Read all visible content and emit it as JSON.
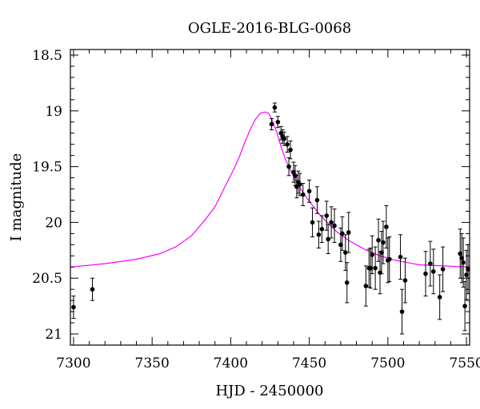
{
  "chart_data": {
    "type": "scatter",
    "title": "OGLE-2016-BLG-0068",
    "xlabel": "HJD - 2450000",
    "ylabel": "I magnitude",
    "xlim": [
      7298,
      7552
    ],
    "ylim": [
      21.1,
      18.45
    ],
    "y_inverted": true,
    "x_ticks": [
      7300,
      7350,
      7400,
      7450,
      7500,
      7550
    ],
    "y_ticks": [
      18.5,
      19,
      19.5,
      20,
      20.5,
      21
    ],
    "x_tick_labels": [
      "7300",
      "7350",
      "7400",
      "7450",
      "7500",
      "7550"
    ],
    "y_tick_labels": [
      "18.5",
      "19",
      "19.5",
      "20",
      "20.5",
      "21"
    ],
    "grid": false,
    "legend": "none",
    "colors": {
      "data": "#000000",
      "model": "#ff00ff"
    },
    "model": {
      "name": "",
      "x": [
        7298,
        7320,
        7340,
        7355,
        7365,
        7375,
        7383,
        7390,
        7396,
        7401,
        7405,
        7409,
        7413,
        7416,
        7419,
        7422,
        7424,
        7426,
        7429,
        7432,
        7435,
        7440,
        7445,
        7450,
        7456,
        7462,
        7468,
        7475,
        7485,
        7495,
        7505,
        7520,
        7535,
        7552
      ],
      "y": [
        20.4,
        20.37,
        20.33,
        20.28,
        20.22,
        20.12,
        19.99,
        19.86,
        19.69,
        19.55,
        19.43,
        19.28,
        19.15,
        19.07,
        19.02,
        19.01,
        19.02,
        19.07,
        19.18,
        19.32,
        19.44,
        19.59,
        19.71,
        19.81,
        19.92,
        20.01,
        20.09,
        20.16,
        20.24,
        20.3,
        20.34,
        20.38,
        20.39,
        20.4
      ]
    },
    "series": [
      {
        "name": "",
        "x": [
          7300,
          7312,
          7426,
          7428,
          7430,
          7432,
          7433,
          7434,
          7436,
          7437,
          7438,
          7440,
          7441,
          7442,
          7443,
          7444,
          7446,
          7450,
          7452,
          7455,
          7456,
          7458,
          7461,
          7462,
          7464,
          7466,
          7470,
          7471,
          7473,
          7474,
          7475,
          7486,
          7488,
          7489,
          7490,
          7492,
          7494,
          7495,
          7496,
          7497,
          7499,
          7500,
          7501,
          7508,
          7509,
          7511,
          7524,
          7527,
          7529,
          7533,
          7535,
          7546,
          7547,
          7548,
          7549,
          7550,
          7551
        ],
        "y": [
          20.76,
          20.6,
          19.12,
          18.97,
          19.1,
          19.2,
          19.23,
          19.25,
          19.3,
          19.5,
          19.35,
          19.55,
          19.58,
          19.68,
          19.64,
          19.66,
          19.75,
          19.72,
          20.0,
          19.8,
          20.11,
          20.06,
          19.94,
          20.15,
          20.0,
          20.03,
          20.2,
          20.1,
          20.27,
          20.54,
          20.09,
          20.57,
          20.41,
          20.41,
          20.29,
          20.41,
          20.16,
          20.45,
          20.27,
          20.18,
          20.04,
          20.34,
          20.33,
          20.31,
          20.8,
          20.52,
          20.46,
          20.37,
          20.44,
          20.67,
          20.42,
          20.28,
          20.32,
          20.36,
          20.75,
          20.47,
          20.42
        ],
        "err": [
          0.1,
          0.1,
          0.05,
          0.04,
          0.05,
          0.06,
          0.06,
          0.06,
          0.07,
          0.08,
          0.08,
          0.09,
          0.09,
          0.1,
          0.1,
          0.1,
          0.1,
          0.1,
          0.13,
          0.12,
          0.12,
          0.12,
          0.13,
          0.13,
          0.14,
          0.15,
          0.15,
          0.15,
          0.16,
          0.18,
          0.18,
          0.18,
          0.17,
          0.18,
          0.17,
          0.19,
          0.19,
          0.19,
          0.19,
          0.19,
          0.19,
          0.2,
          0.2,
          0.2,
          0.2,
          0.2,
          0.2,
          0.2,
          0.2,
          0.2,
          0.2,
          0.22,
          0.22,
          0.22,
          0.22,
          0.22,
          0.22
        ]
      }
    ]
  }
}
